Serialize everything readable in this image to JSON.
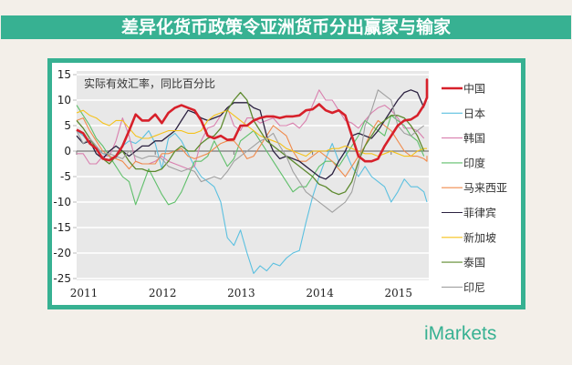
{
  "title": "差异化货币政策令亚洲货币分出赢家与输家",
  "logo_text": "iMarkets",
  "colors": {
    "accent": "#37b192",
    "background": "#f3efe9",
    "plot_bg": "#e8e8e8"
  },
  "chart_data": {
    "type": "line",
    "title": "实际有效汇率，同比百分比",
    "xlabel": "",
    "ylabel": "",
    "ylim": [
      -25,
      15
    ],
    "yticks": [
      15,
      10,
      5,
      0,
      -5,
      -10,
      -15,
      -20,
      -25
    ],
    "ytick_labels": [
      "15",
      "10",
      "5",
      "0",
      "-5",
      "-10",
      "-15",
      "-20",
      "-25"
    ],
    "xticks": [
      "2011",
      "2012",
      "2013",
      "2014",
      "2015"
    ],
    "x_start": "2011-01",
    "x_frequency": "monthly",
    "grid": true,
    "legend_position": "right",
    "series": [
      {
        "name": "中国",
        "color": "#d7202a",
        "width": 2.6,
        "values": [
          4.2,
          3.5,
          1.5,
          0.5,
          -1.5,
          -1.8,
          -1,
          1,
          4,
          7.2,
          6,
          6,
          7.2,
          5.5,
          7.5,
          8.5,
          9,
          8.5,
          8,
          6,
          3,
          2.5,
          3,
          2.2,
          2.3,
          5,
          5,
          6,
          6.5,
          6.8,
          6.8,
          6.5,
          6.8,
          6.8,
          7,
          8,
          8.2,
          9.2,
          8,
          7.5,
          8,
          7,
          3,
          -1,
          -2,
          -2,
          -1.5,
          1,
          3,
          5,
          6,
          6.2,
          7,
          9,
          10.5,
          12,
          14,
          13.5
        ]
      },
      {
        "name": "日本",
        "color": "#5bc0e0",
        "width": 1.1,
        "values": [
          4,
          3,
          1.5,
          0.5,
          -0.5,
          -1,
          -1.5,
          1,
          2,
          1.5,
          2.5,
          4,
          1.5,
          -3.5,
          2.5,
          3.5,
          2,
          -0.5,
          -3,
          -5,
          -6,
          -7,
          -10,
          -17,
          -18.5,
          -15.5,
          -20,
          -24,
          -22.5,
          -23.5,
          -22,
          -22.5,
          -21,
          -20,
          -19.5,
          -14,
          -9,
          -5,
          -1.5,
          1.5,
          -2,
          0,
          -3,
          -5,
          -3,
          -5,
          -6,
          -7,
          -10,
          -8,
          -5.5,
          -7,
          -7,
          -8,
          -10
        ]
      },
      {
        "name": "韩国",
        "color": "#d97fae",
        "width": 1.1,
        "values": [
          -0.5,
          -0.5,
          -2.5,
          -2.5,
          -1,
          -1,
          2,
          6.5,
          3,
          -2,
          -2.5,
          -2.5,
          -2,
          -1,
          -2,
          -2.5,
          -3,
          -3.5,
          -3,
          2,
          4.5,
          5,
          7,
          8.5,
          5,
          4,
          6.5,
          6.5,
          5.5,
          6,
          6.5,
          5,
          5,
          5.5,
          4.5,
          6,
          9,
          12,
          10,
          10,
          8,
          6,
          5.5,
          4.5,
          6,
          7.5,
          8.5,
          9,
          8,
          6.5,
          4.5,
          4.5,
          4,
          2.5
        ]
      },
      {
        "name": "印度",
        "color": "#5fbf6a",
        "width": 1.1,
        "values": [
          9,
          7,
          5,
          2.5,
          1,
          -1,
          -3,
          -5,
          -6,
          -10.5,
          -7,
          -3.5,
          -6,
          -8.5,
          -10.5,
          -10,
          -8,
          -5,
          -2,
          -2,
          -1,
          2,
          -0.5,
          -3,
          -1.5,
          2,
          3,
          4,
          2,
          0,
          -2,
          -4,
          -6,
          -8,
          -7,
          -7,
          -5,
          -3,
          -2,
          -2,
          -3,
          -1,
          1,
          3,
          6,
          5,
          4,
          3,
          7,
          6,
          5,
          3,
          2,
          -1
        ]
      },
      {
        "name": "马来西亚",
        "color": "#f08a4b",
        "width": 1.1,
        "values": [
          6,
          6.5,
          4,
          2,
          0,
          -1,
          -1.5,
          -2,
          -3.5,
          -2,
          -2.5,
          -2.5,
          -2.5,
          -0.5,
          -0.5,
          0,
          0.5,
          -1,
          -1.5,
          -1,
          -0.5,
          0.5,
          1.5,
          2,
          2,
          0.5,
          -1.5,
          -1,
          1,
          3,
          5,
          4,
          3,
          0,
          -2,
          -2,
          -1,
          0,
          -1,
          -2,
          -3.5,
          -5,
          -3,
          -1,
          1,
          4,
          6,
          5,
          4,
          2,
          0,
          -1,
          -1,
          -1.5,
          -2,
          -1,
          -1.5
        ]
      },
      {
        "name": "菲律宾",
        "color": "#2b2140",
        "width": 1.3,
        "values": [
          3,
          1.5,
          2,
          -0.5,
          -1.5,
          0,
          1,
          0,
          -1,
          0,
          1,
          1,
          2,
          2,
          3,
          4,
          6,
          8,
          7.5,
          6.5,
          6,
          6.5,
          7,
          8.5,
          9.5,
          9.5,
          9.5,
          8.5,
          8,
          3,
          0,
          -1.5,
          -1,
          -1.5,
          -2,
          -3,
          -4,
          -5,
          -5.5,
          -4.5,
          -2,
          0,
          3,
          3.5,
          3,
          2.5,
          4,
          6,
          8,
          10,
          11.5,
          12,
          11.5,
          8.5
        ]
      },
      {
        "name": "新加坡",
        "color": "#f5c21a",
        "width": 1.1,
        "values": [
          7.5,
          8,
          7,
          6.5,
          5.5,
          5,
          6,
          6,
          4.5,
          3,
          2.5,
          2.5,
          3,
          3.5,
          4,
          4,
          4,
          3.5,
          3.5,
          4,
          6,
          7,
          7.5,
          8,
          7,
          6,
          5,
          4,
          3,
          2.5,
          2,
          1.5,
          0.5,
          0,
          -0.5,
          -1,
          0,
          0,
          0,
          0.5,
          0.5,
          1,
          0.5,
          0,
          -0.5,
          -0.5,
          -1,
          -0.5,
          0,
          -0.5,
          -1,
          -1,
          0,
          0.5,
          0.5
        ]
      },
      {
        "name": "泰国",
        "color": "#5d8a2e",
        "width": 1.3,
        "values": [
          6,
          4.5,
          2.5,
          0.5,
          -1.5,
          -2.5,
          -1,
          0,
          -2,
          -3.5,
          -3.5,
          -4,
          -4,
          -3.5,
          -2,
          0,
          1,
          0,
          0,
          1.5,
          2.5,
          3,
          4.5,
          8,
          10,
          11.5,
          10,
          6,
          4,
          2,
          1,
          0,
          -1,
          -2,
          -3,
          -4,
          -5,
          -6.5,
          -7,
          -8,
          -8.5,
          -8,
          -6,
          -2,
          1,
          3,
          5,
          6,
          7,
          7,
          6.5,
          5,
          3,
          0
        ]
      },
      {
        "name": "印尼",
        "color": "#a0a0a0",
        "width": 1.1,
        "values": [
          4,
          1.5,
          2.5,
          1,
          -0.5,
          -0.5,
          -1,
          -1.5,
          0,
          -1,
          -1.5,
          -1,
          -1,
          -1.5,
          -3,
          -3.5,
          -4,
          -3.5,
          -4,
          -6,
          -5.5,
          -5,
          -5.5,
          -4,
          -2,
          -1,
          0,
          1,
          2,
          2.5,
          3.5,
          1,
          -1,
          -4,
          -6,
          -8,
          -9,
          -10,
          -11,
          -12,
          -11,
          -10,
          -8,
          -3,
          5,
          8,
          12,
          11,
          10,
          5,
          3.5,
          3,
          4,
          5
        ]
      }
    ]
  }
}
